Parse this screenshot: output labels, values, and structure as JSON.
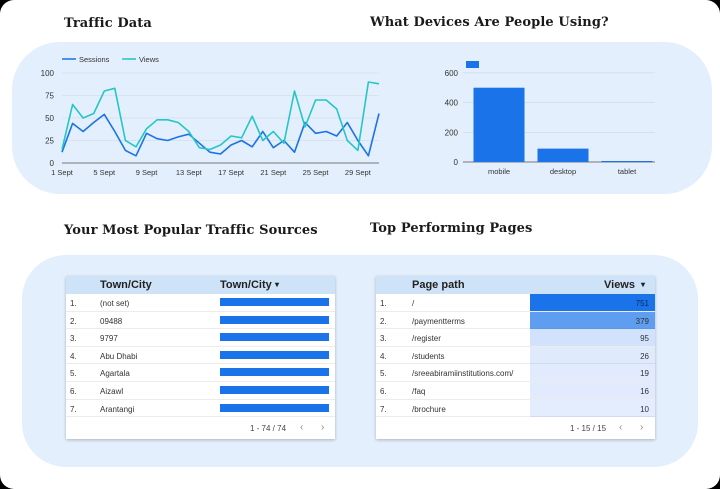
{
  "headings": {
    "traffic": "Traffic Data",
    "devices": "What Devices Are People Using?",
    "sources": "Your Most Popular Traffic Sources",
    "pages": "Top Performing Pages"
  },
  "traffic_chart": {
    "type": "line",
    "legend": [
      "Sessions",
      "Views"
    ],
    "ylim": [
      0,
      100
    ],
    "yticks": [
      "0",
      "25",
      "50",
      "75",
      "100"
    ],
    "xticks": [
      "1 Sept",
      "5 Sept",
      "9 Sept",
      "13 Sept",
      "17 Sept",
      "21 Sept",
      "25 Sept",
      "29 Sept"
    ],
    "colors": {
      "sessions": "#1a73e8",
      "views": "#26c6c6"
    },
    "series": [
      {
        "name": "Sessions",
        "values": [
          12,
          44,
          35,
          45,
          54,
          35,
          14,
          8,
          33,
          27,
          25,
          29,
          32,
          22,
          12,
          10,
          20,
          25,
          18,
          35,
          17,
          25,
          12,
          45,
          33,
          35,
          30,
          45,
          25,
          8,
          55
        ]
      },
      {
        "name": "Views",
        "values": [
          15,
          65,
          50,
          55,
          80,
          83,
          25,
          18,
          38,
          48,
          48,
          45,
          35,
          17,
          15,
          20,
          30,
          28,
          52,
          25,
          35,
          22,
          80,
          40,
          70,
          70,
          60,
          25,
          14,
          90,
          88
        ]
      }
    ]
  },
  "devices_chart": {
    "type": "bar",
    "categories": [
      "mobile",
      "desktop",
      "tablet"
    ],
    "values": [
      500,
      90,
      5
    ],
    "ylim": [
      0,
      700
    ],
    "yticks": [
      "0",
      "200",
      "400",
      "600"
    ],
    "color": "#1a73e8"
  },
  "sources_table": {
    "headers": [
      "Town/City",
      "Town/City"
    ],
    "sort_icon": "▾",
    "rows": [
      {
        "idx": "1.",
        "city": "(not set)"
      },
      {
        "idx": "2.",
        "city": "09488"
      },
      {
        "idx": "3.",
        "city": "9797"
      },
      {
        "idx": "4.",
        "city": "Abu Dhabi"
      },
      {
        "idx": "5.",
        "city": "Agartala"
      },
      {
        "idx": "6.",
        "city": "Aizawl"
      },
      {
        "idx": "7.",
        "city": "Arantangi"
      }
    ],
    "pagination": "1 - 74 / 74"
  },
  "pages_table": {
    "headers": [
      "Page path",
      "Views"
    ],
    "sort_icon": "▾",
    "rows": [
      {
        "idx": "1.",
        "path": "/",
        "views": "751",
        "fill": 1.0
      },
      {
        "idx": "2.",
        "path": "/paymentterms",
        "views": "379",
        "fill": 0.5
      },
      {
        "idx": "3.",
        "path": "/register",
        "views": "95",
        "fill": 0.13
      },
      {
        "idx": "4.",
        "path": "/students",
        "views": "26",
        "fill": 0.035
      },
      {
        "idx": "5.",
        "path": "/sreeabiramiinstitutions.com/",
        "views": "19",
        "fill": 0.025
      },
      {
        "idx": "6.",
        "path": "/faq",
        "views": "16",
        "fill": 0.02
      },
      {
        "idx": "7.",
        "path": "/brochure",
        "views": "10",
        "fill": 0.013
      }
    ],
    "pagination": "1 - 15 / 15"
  },
  "icons": {
    "prev": "chevron-left-icon",
    "next": "chevron-right-icon",
    "sort": "sort-desc-icon"
  }
}
